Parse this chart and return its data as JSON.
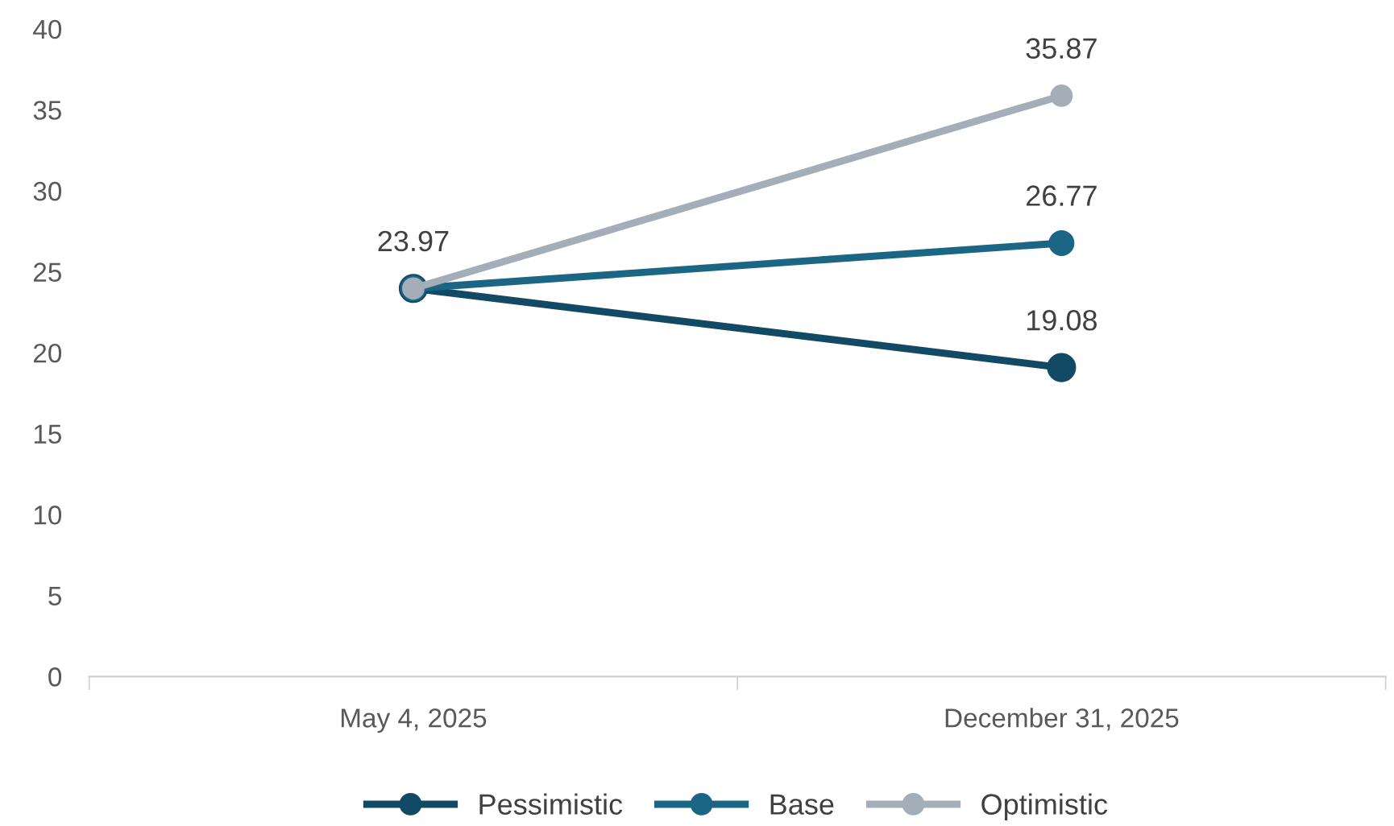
{
  "chart_data": {
    "type": "line",
    "categories": [
      "May 4, 2025",
      "December 31, 2025"
    ],
    "series": [
      {
        "name": "Pessimistic",
        "color": "#124a66",
        "values": [
          23.97,
          19.08
        ],
        "value_labels": [
          null,
          "19.08"
        ]
      },
      {
        "name": "Base",
        "color": "#1b6585",
        "values": [
          23.97,
          26.77
        ],
        "value_labels": [
          null,
          "26.77"
        ]
      },
      {
        "name": "Optimistic",
        "color": "#a3aeb9",
        "values": [
          23.97,
          35.87
        ],
        "value_labels": [
          "23.97",
          "35.87"
        ]
      }
    ],
    "ylim": [
      0,
      40
    ],
    "yticks": [
      0,
      5,
      10,
      15,
      20,
      25,
      30,
      35,
      40
    ],
    "grid": false,
    "legend": "bottom",
    "marker": "circle",
    "line_style": "solid"
  }
}
